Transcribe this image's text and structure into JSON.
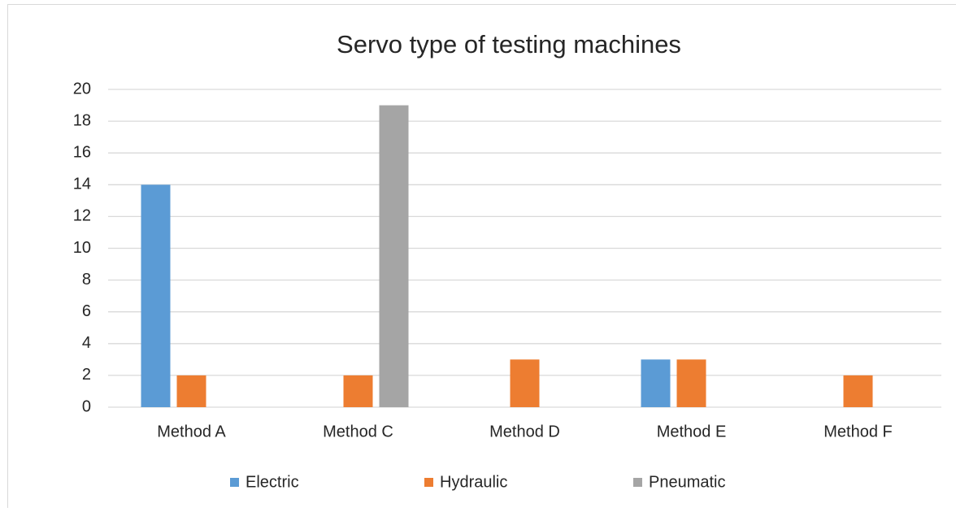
{
  "chart_data": {
    "type": "bar",
    "title": "Servo type of testing machines",
    "categories": [
      "Method A",
      "Method C",
      "Method D",
      "Method E",
      "Method F"
    ],
    "series": [
      {
        "name": "Electric",
        "color": "#5b9bd5",
        "values": [
          14,
          0,
          0,
          3,
          0
        ]
      },
      {
        "name": "Hydraulic",
        "color": "#ed7d31",
        "values": [
          2,
          2,
          3,
          3,
          2
        ]
      },
      {
        "name": "Pneumatic",
        "color": "#a5a5a5",
        "values": [
          0,
          19,
          0,
          0,
          0
        ]
      }
    ],
    "ylim": [
      0,
      20
    ],
    "yticks": [
      0,
      2,
      4,
      6,
      8,
      10,
      12,
      14,
      16,
      18,
      20
    ],
    "grid": true
  }
}
